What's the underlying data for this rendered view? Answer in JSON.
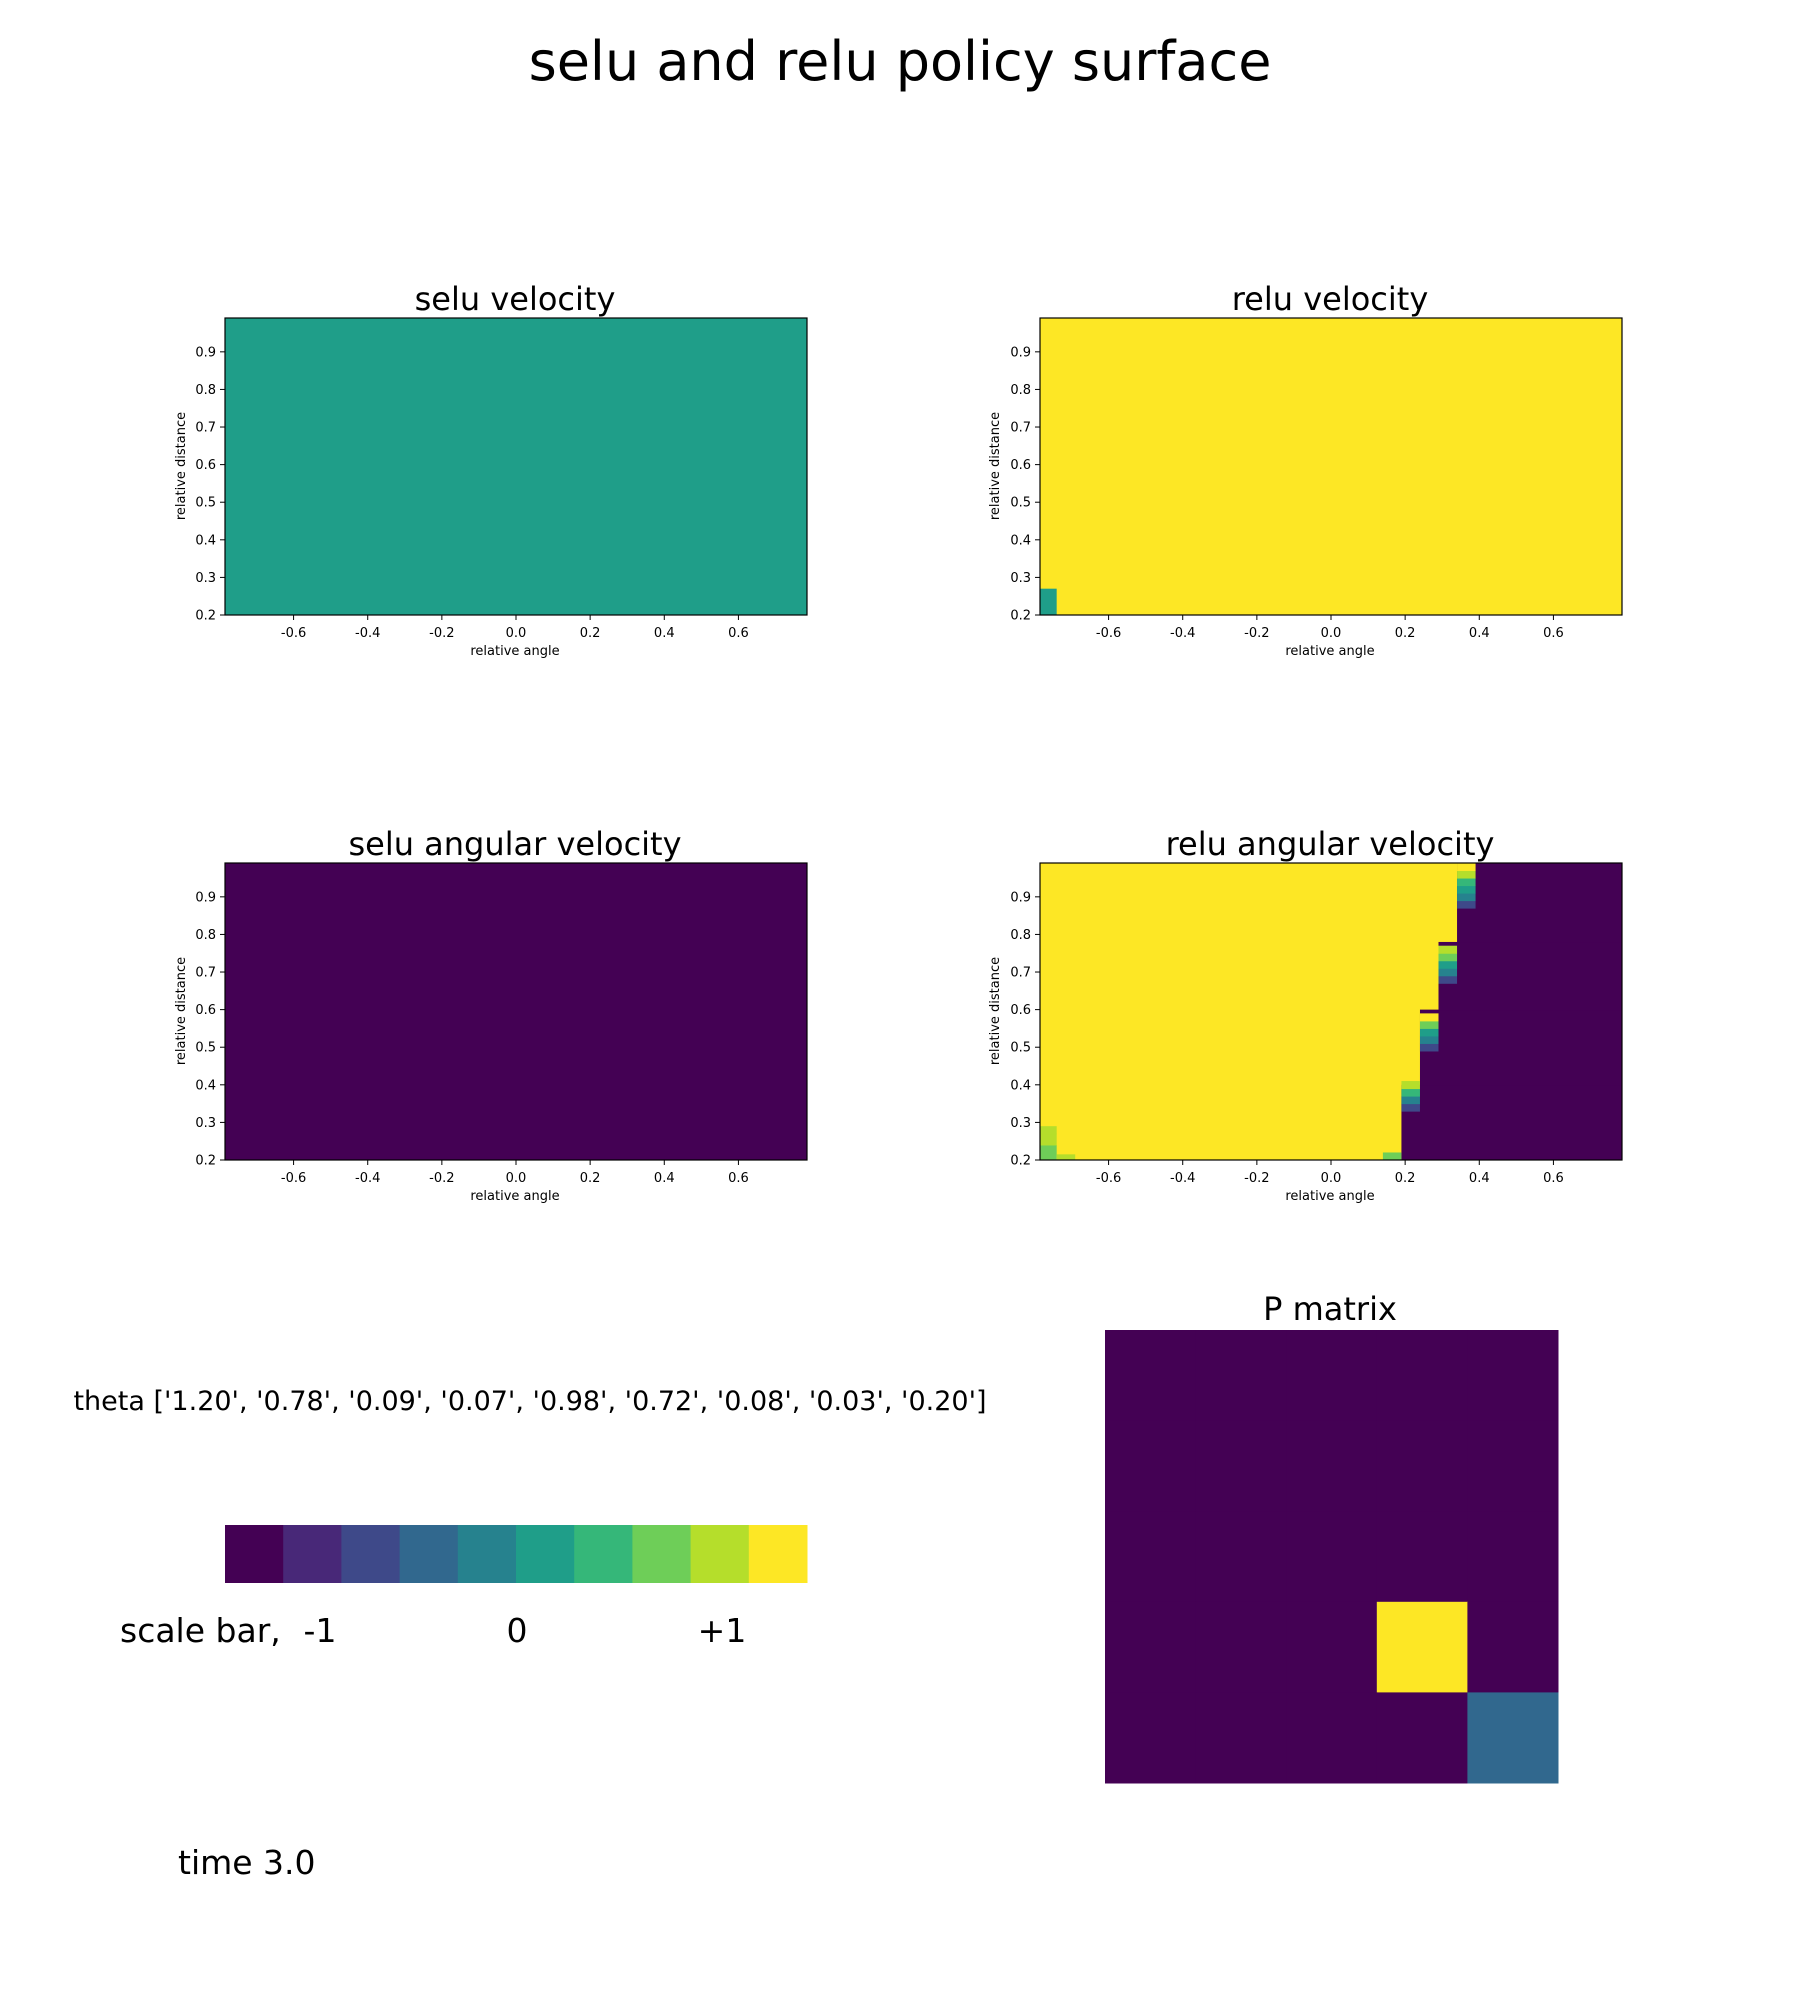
{
  "figure": {
    "title": "selu and relu policy surface",
    "theta_text": "theta ['1.20', '0.78', '0.09', '0.07', '0.98', '0.72', '0.08', '0.03', '0.20']",
    "time_text": "time 3.0"
  },
  "colors": {
    "viridis": [
      "#440154",
      "#482878",
      "#3e4989",
      "#31688e",
      "#26828e",
      "#1f9e89",
      "#35b779",
      "#6ece58",
      "#b5de2b",
      "#fde725"
    ]
  },
  "chart_data": [
    {
      "type": "heatmap",
      "title": "selu velocity",
      "xlabel": "relative angle",
      "ylabel": "relative distance",
      "xlim": [
        -0.785,
        0.785
      ],
      "ylim": [
        0.2,
        0.99
      ],
      "xticks": [
        "-0.6",
        "-0.4",
        "-0.2",
        "0.0",
        "0.2",
        "0.4",
        "0.6"
      ],
      "yticks": [
        "0.2",
        "0.3",
        "0.4",
        "0.5",
        "0.6",
        "0.7",
        "0.8",
        "0.9"
      ],
      "base_value": 0.0,
      "regions": []
    },
    {
      "type": "heatmap",
      "title": "relu velocity",
      "xlabel": "relative angle",
      "ylabel": "relative distance",
      "xlim": [
        -0.785,
        0.785
      ],
      "ylim": [
        0.2,
        0.99
      ],
      "xticks": [
        "-0.6",
        "-0.4",
        "-0.2",
        "0.0",
        "0.2",
        "0.4",
        "0.6"
      ],
      "yticks": [
        "0.2",
        "0.3",
        "0.4",
        "0.5",
        "0.6",
        "0.7",
        "0.8",
        "0.9"
      ],
      "base_value": 1.0,
      "regions": [
        {
          "x": [
            -0.785,
            -0.74
          ],
          "y": [
            0.2,
            0.27
          ],
          "value": 0.0
        }
      ]
    },
    {
      "type": "heatmap",
      "title": "selu angular velocity",
      "xlabel": "relative angle",
      "ylabel": "relative distance",
      "xlim": [
        -0.785,
        0.785
      ],
      "ylim": [
        0.2,
        0.99
      ],
      "xticks": [
        "-0.6",
        "-0.4",
        "-0.2",
        "0.0",
        "0.2",
        "0.4",
        "0.6"
      ],
      "yticks": [
        "0.2",
        "0.3",
        "0.4",
        "0.5",
        "0.6",
        "0.7",
        "0.8",
        "0.9"
      ],
      "base_value": -1.0,
      "regions": []
    },
    {
      "type": "heatmap",
      "title": "relu angular velocity",
      "xlabel": "relative angle",
      "ylabel": "relative distance",
      "xlim": [
        -0.785,
        0.785
      ],
      "ylim": [
        0.2,
        0.99
      ],
      "xticks": [
        "-0.6",
        "-0.4",
        "-0.2",
        "0.0",
        "0.2",
        "0.4",
        "0.6"
      ],
      "yticks": [
        "0.2",
        "0.3",
        "0.4",
        "0.5",
        "0.6",
        "0.7",
        "0.8",
        "0.9"
      ],
      "base_value": 1.0,
      "regions": [
        {
          "x": [
            0.19,
            0.785
          ],
          "y": [
            0.2,
            0.4
          ],
          "value": -1.0
        },
        {
          "x": [
            0.24,
            0.785
          ],
          "y": [
            0.4,
            0.6
          ],
          "value": -1.0
        },
        {
          "x": [
            0.29,
            0.785
          ],
          "y": [
            0.6,
            0.78
          ],
          "value": -1.0
        },
        {
          "x": [
            0.34,
            0.785
          ],
          "y": [
            0.78,
            0.99
          ],
          "value": -1.0
        },
        {
          "x": [
            0.14,
            0.19
          ],
          "y": [
            0.2,
            0.22
          ],
          "value": 0.6
        },
        {
          "x": [
            0.19,
            0.24
          ],
          "y": [
            0.33,
            0.35
          ],
          "value": -0.6
        },
        {
          "x": [
            0.19,
            0.24
          ],
          "y": [
            0.35,
            0.37
          ],
          "value": -0.2
        },
        {
          "x": [
            0.19,
            0.24
          ],
          "y": [
            0.37,
            0.39
          ],
          "value": 0.3
        },
        {
          "x": [
            0.19,
            0.24
          ],
          "y": [
            0.39,
            0.41
          ],
          "value": 0.7
        },
        {
          "x": [
            0.24,
            0.29
          ],
          "y": [
            0.49,
            0.51
          ],
          "value": -0.6
        },
        {
          "x": [
            0.24,
            0.29
          ],
          "y": [
            0.51,
            0.53
          ],
          "value": -0.2
        },
        {
          "x": [
            0.24,
            0.29
          ],
          "y": [
            0.53,
            0.55
          ],
          "value": 0.2
        },
        {
          "x": [
            0.24,
            0.29
          ],
          "y": [
            0.55,
            0.57
          ],
          "value": 0.6
        },
        {
          "x": [
            0.24,
            0.29
          ],
          "y": [
            0.57,
            0.59
          ],
          "value": 0.9
        },
        {
          "x": [
            0.29,
            0.34
          ],
          "y": [
            0.67,
            0.69
          ],
          "value": -0.6
        },
        {
          "x": [
            0.29,
            0.34
          ],
          "y": [
            0.69,
            0.71
          ],
          "value": -0.2
        },
        {
          "x": [
            0.29,
            0.34
          ],
          "y": [
            0.71,
            0.73
          ],
          "value": 0.1
        },
        {
          "x": [
            0.29,
            0.34
          ],
          "y": [
            0.73,
            0.75
          ],
          "value": 0.5
        },
        {
          "x": [
            0.29,
            0.34
          ],
          "y": [
            0.75,
            0.77
          ],
          "value": 0.85
        },
        {
          "x": [
            0.34,
            0.39
          ],
          "y": [
            0.87,
            0.89
          ],
          "value": -0.6
        },
        {
          "x": [
            0.34,
            0.39
          ],
          "y": [
            0.89,
            0.91
          ],
          "value": -0.2
        },
        {
          "x": [
            0.34,
            0.39
          ],
          "y": [
            0.91,
            0.93
          ],
          "value": 0.1
        },
        {
          "x": [
            0.34,
            0.39
          ],
          "y": [
            0.93,
            0.95
          ],
          "value": 0.4
        },
        {
          "x": [
            0.34,
            0.39
          ],
          "y": [
            0.95,
            0.97
          ],
          "value": 0.7
        },
        {
          "x": [
            0.34,
            0.39
          ],
          "y": [
            0.97,
            0.99
          ],
          "value": 0.9
        },
        {
          "x": [
            -0.785,
            -0.74
          ],
          "y": [
            0.2,
            0.24
          ],
          "value": 0.5
        },
        {
          "x": [
            -0.785,
            -0.74
          ],
          "y": [
            0.24,
            0.27
          ],
          "value": 0.7
        },
        {
          "x": [
            -0.785,
            -0.74
          ],
          "y": [
            0.27,
            0.29
          ],
          "value": 0.85
        },
        {
          "x": [
            -0.74,
            -0.69
          ],
          "y": [
            0.2,
            0.215
          ],
          "value": 0.85
        }
      ]
    },
    {
      "type": "heatmap",
      "title": "P matrix",
      "rows": 5,
      "cols": 5,
      "base_value": -1.0,
      "cells": [
        {
          "row": 3,
          "col": 3,
          "value": 1.0
        },
        {
          "row": 4,
          "col": 4,
          "value": -0.4
        }
      ]
    },
    {
      "type": "heatmap",
      "name": "scale bar",
      "label": "scale bar,",
      "values": [
        -1.0,
        -0.778,
        -0.556,
        -0.333,
        -0.111,
        0.111,
        0.333,
        0.556,
        0.778,
        1.0
      ],
      "ticks": [
        {
          "value": -1,
          "label": "-1"
        },
        {
          "value": 0,
          "label": "0"
        },
        {
          "value": 1,
          "label": "+1"
        }
      ]
    }
  ]
}
